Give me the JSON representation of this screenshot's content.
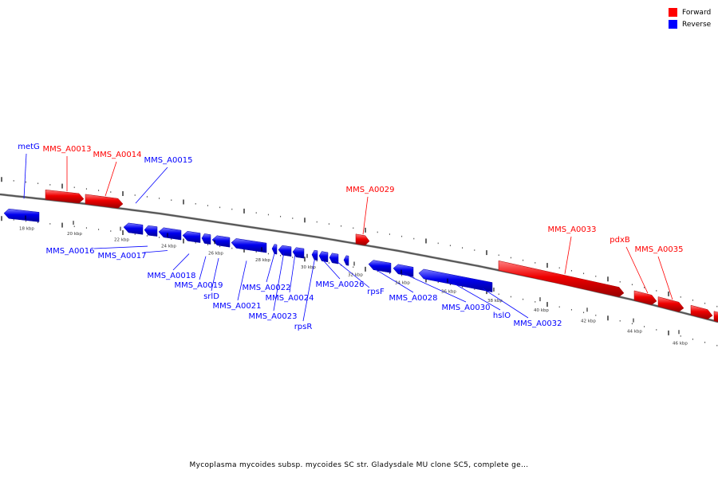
{
  "legend": {
    "forward_label": "Forward",
    "reverse_label": "Reverse",
    "forward_color": "#ff0000",
    "reverse_color": "#0000ff"
  },
  "caption": "Mycoplasma mycoides subsp. mycoides SC str. Gladysdale MU clone SC5, complete ge...",
  "kbp_labels": [
    "18 kbp",
    "20 kbp",
    "22 kbp",
    "24 kbp",
    "26 kbp",
    "28 kbp",
    "30 kbp",
    "32 kbp",
    "34 kbp",
    "36 kbp",
    "38 kbp",
    "40 kbp",
    "42 kbp",
    "44 kbp",
    "46 kbp"
  ],
  "genes": [
    {
      "label": "metG",
      "strand": "reverse"
    },
    {
      "label": "MMS_A0013",
      "strand": "forward"
    },
    {
      "label": "MMS_A0014",
      "strand": "forward"
    },
    {
      "label": "MMS_A0015",
      "strand": "reverse"
    },
    {
      "label": "MMS_A0016",
      "strand": "reverse"
    },
    {
      "label": "MMS_A0017",
      "strand": "reverse"
    },
    {
      "label": "MMS_A0018",
      "strand": "reverse"
    },
    {
      "label": "MMS_A0019",
      "strand": "reverse"
    },
    {
      "label": "srlD",
      "strand": "reverse"
    },
    {
      "label": "MMS_A0021",
      "strand": "reverse"
    },
    {
      "label": "MMS_A0022",
      "strand": "reverse"
    },
    {
      "label": "MMS_A0024",
      "strand": "reverse"
    },
    {
      "label": "MMS_A0023",
      "strand": "reverse"
    },
    {
      "label": "rpsR",
      "strand": "reverse"
    },
    {
      "label": "MMS_A0026",
      "strand": "reverse"
    },
    {
      "label": "rpsF",
      "strand": "reverse"
    },
    {
      "label": "MMS_A0028",
      "strand": "reverse"
    },
    {
      "label": "MMS_A0029",
      "strand": "forward"
    },
    {
      "label": "MMS_A0030",
      "strand": "reverse"
    },
    {
      "label": "hslO",
      "strand": "reverse"
    },
    {
      "label": "MMS_A0032",
      "strand": "reverse"
    },
    {
      "label": "MMS_A0033",
      "strand": "forward"
    },
    {
      "label": "pdxB",
      "strand": "forward"
    },
    {
      "label": "MMS_A0035",
      "strand": "forward"
    }
  ]
}
